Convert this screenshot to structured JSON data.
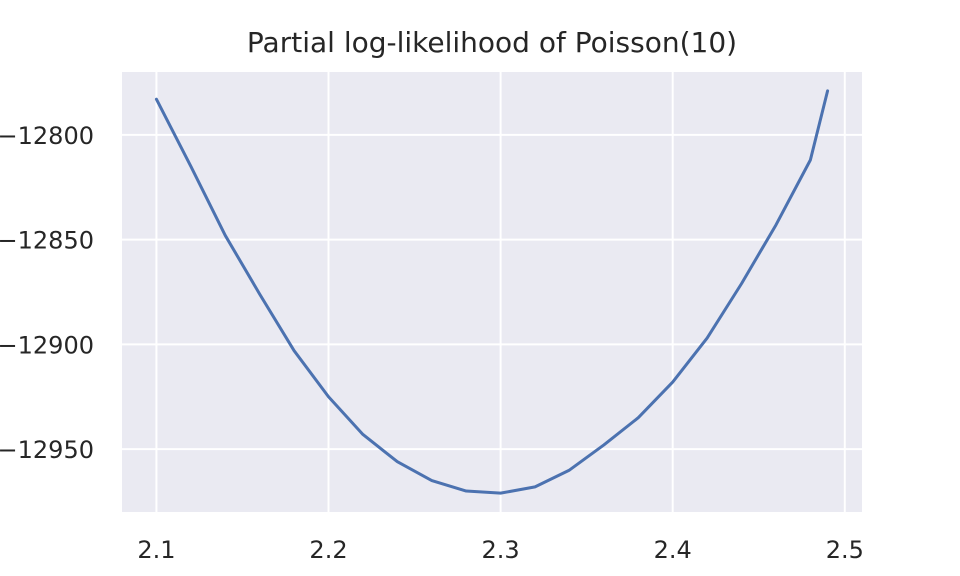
{
  "chart_data": {
    "type": "line",
    "title": "Partial log-likelihood of Poisson(10)",
    "xlabel": "",
    "ylabel": "",
    "xlim": [
      2.08,
      2.51
    ],
    "ylim": [
      -12980,
      -12770
    ],
    "x_ticks": [
      2.1,
      2.2,
      2.3,
      2.4,
      2.5
    ],
    "x_tick_labels": [
      "2.1",
      "2.2",
      "2.3",
      "2.4",
      "2.5"
    ],
    "y_ticks": [
      -12800,
      -12850,
      -12900,
      -12950
    ],
    "y_tick_labels": [
      "−12800",
      "−12850",
      "−12900",
      "−12950"
    ],
    "grid": true,
    "background_color": "#eaeaf2",
    "grid_color": "#ffffff",
    "series": [
      {
        "color": "#4c72b0",
        "x": [
          2.1,
          2.12,
          2.14,
          2.16,
          2.18,
          2.2,
          2.22,
          2.24,
          2.26,
          2.28,
          2.3,
          2.32,
          2.34,
          2.36,
          2.38,
          2.4,
          2.42,
          2.44,
          2.46,
          2.48,
          2.49
        ],
        "y": [
          -12783,
          -12815,
          -12848,
          -12876,
          -12903,
          -12925,
          -12943,
          -12956,
          -12965,
          -12970,
          -12971,
          -12968,
          -12960,
          -12948,
          -12935,
          -12918,
          -12897,
          -12871,
          -12843,
          -12812,
          -12779
        ]
      }
    ]
  }
}
